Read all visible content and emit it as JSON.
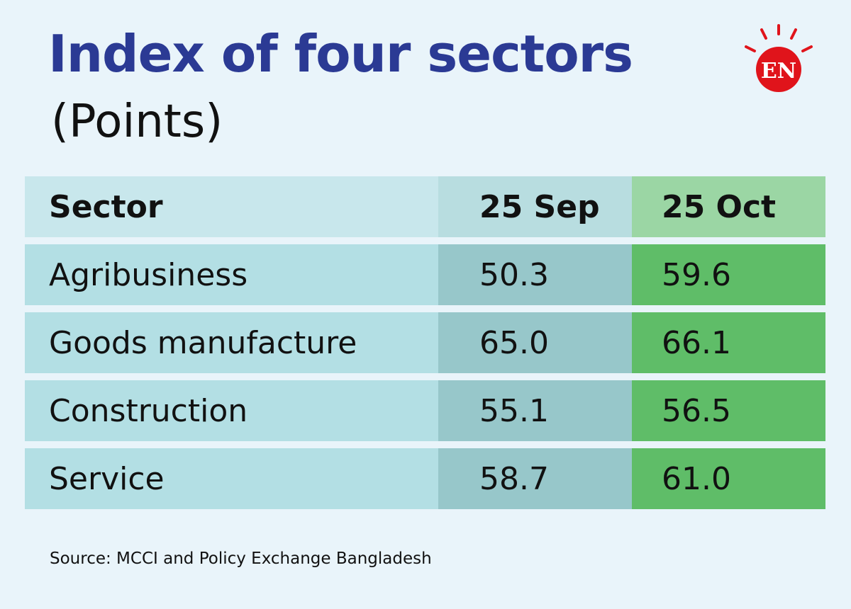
{
  "header": {
    "title": "Index of four sectors",
    "subtitle": "(Points)",
    "logo_text": "EN"
  },
  "colors": {
    "title": "#2b3a94",
    "logo_red": "#e0141b",
    "sep_column": "#97c7ca",
    "oct_column": "#5fbd68"
  },
  "chart_data": {
    "type": "table",
    "columns": [
      "Sector",
      "25 Sep",
      "25 Oct"
    ],
    "rows": [
      [
        "Agribusiness",
        "50.3",
        "59.6"
      ],
      [
        "Goods manufacture",
        "65.0",
        "66.1"
      ],
      [
        "Construction",
        "55.1",
        "56.5"
      ],
      [
        "Service",
        "58.7",
        "61.0"
      ]
    ]
  },
  "footer": {
    "source": "Source: MCCI and Policy Exchange Bangladesh"
  }
}
